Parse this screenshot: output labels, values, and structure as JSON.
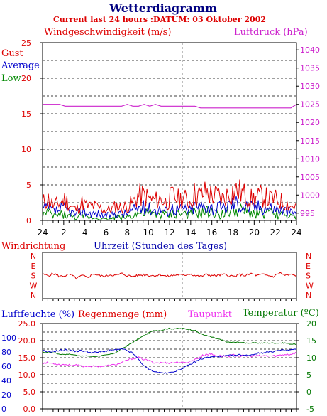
{
  "header": {
    "title": "Wetterdiagramm",
    "subtitle": "Current last 24 hours :DATUM: 03 Oktober 2002"
  },
  "colors": {
    "gust": "#dd0000",
    "average": "#0000cc",
    "low": "#008800",
    "pressure": "#cc22cc",
    "title": "#000080",
    "dew": "#ee33ee",
    "temp": "#007700",
    "humidity": "#0000cc",
    "rain": "#dd0000"
  },
  "chart_data": [
    {
      "type": "line",
      "name": "wind-pressure",
      "left_title": "Windgeschwindigkeit (m/s)",
      "right_title": "Luftdruck (hPa)",
      "legend": [
        "Gust",
        "Average",
        "Low"
      ],
      "x_ticks": [
        "24",
        "2",
        "4",
        "6",
        "8",
        "10",
        "12",
        "14",
        "16",
        "18",
        "20",
        "22",
        "24"
      ],
      "y_left_ticks": [
        "0",
        "5",
        "10",
        "15",
        "20",
        "25"
      ],
      "y_left_range": [
        0,
        25
      ],
      "y_right_ticks": [
        "995",
        "1000",
        "1005",
        "1010",
        "1015",
        "1020",
        "1025",
        "1030",
        "1035",
        "1040"
      ],
      "y_right_range": [
        993,
        1042
      ],
      "series": [
        {
          "name": "Gust",
          "values": [
            2.5,
            3,
            2,
            2.5,
            3,
            2,
            1.5,
            2.5,
            2,
            2,
            1.8,
            1.5,
            1.5,
            2,
            1.8,
            2,
            2.5,
            3.5,
            3.5,
            3,
            2.8,
            3,
            2.5,
            3.5,
            3,
            3.2,
            2.5,
            3.8,
            3.5,
            4,
            3.5,
            3.5,
            3,
            3.8,
            4.2,
            4,
            3.5,
            3,
            3.2,
            3.5,
            3,
            3,
            2.8,
            2.5,
            2,
            2
          ]
        },
        {
          "name": "Average",
          "values": [
            1.5,
            1.8,
            1.2,
            1.5,
            1.6,
            1.2,
            0.8,
            1.4,
            1,
            1,
            0.9,
            0.7,
            0.7,
            1,
            0.9,
            1,
            1.4,
            1.8,
            1.8,
            1.6,
            1.5,
            1.6,
            1.3,
            1.8,
            1.6,
            1.7,
            1.3,
            2,
            1.9,
            2.2,
            1.8,
            1.8,
            1.6,
            2.2,
            2.5,
            2.3,
            2,
            1.8,
            1.9,
            2,
            1.8,
            1.7,
            1.5,
            1.4,
            1.1,
            1.1
          ]
        },
        {
          "name": "Low",
          "values": [
            0.8,
            1,
            0.6,
            0.8,
            0.8,
            0.6,
            0.3,
            0.7,
            0.4,
            0.4,
            0.3,
            0.2,
            0.2,
            0.5,
            0.4,
            0.5,
            0.8,
            1,
            1,
            0.9,
            0.8,
            0.9,
            0.7,
            1,
            0.9,
            1,
            0.7,
            1.1,
            1,
            1.2,
            1,
            1,
            0.9,
            1.2,
            1.4,
            1.3,
            1.1,
            1,
            1,
            1.1,
            1,
            0.9,
            0.8,
            0.7,
            0.5,
            0.5
          ]
        },
        {
          "name": "Luftdruck",
          "values": [
            1025,
            1025,
            1025,
            1025,
            1024.5,
            1024.5,
            1024.5,
            1024.5,
            1024.5,
            1024.5,
            1024.5,
            1024.5,
            1024.5,
            1024.5,
            1024.5,
            1025,
            1024.5,
            1024.5,
            1025,
            1024.5,
            1025,
            1024.5,
            1024.5,
            1024.5,
            1024.5,
            1024.5,
            1024.5,
            1024.5,
            1024,
            1024,
            1024,
            1024,
            1024,
            1024,
            1024,
            1024,
            1024,
            1024,
            1024,
            1024,
            1024,
            1024,
            1024,
            1024,
            1024,
            1025
          ]
        }
      ]
    },
    {
      "type": "line",
      "name": "wind-direction",
      "left_title": "Windrichtung",
      "center_title": "Uhrzeit (Stunden des Tages)",
      "y_labels": [
        "N",
        "W",
        "S",
        "E",
        "N"
      ],
      "series": [
        {
          "name": "Windrichtung",
          "values": [
            2.1,
            2,
            2.2,
            1.9,
            2,
            2.1,
            1.7,
            2,
            1.8,
            2.2,
            2,
            1.9,
            2.1,
            2,
            2.2,
            2,
            1.9,
            2,
            2.1,
            2,
            2,
            2.1,
            1.9,
            2,
            2.1,
            2,
            2.2,
            2,
            1.9,
            2.1,
            2,
            2,
            2.1,
            2,
            1.9,
            2.1,
            2,
            2.2,
            2,
            2.1,
            2,
            1.9,
            2.3,
            2,
            2.1,
            2
          ]
        }
      ]
    },
    {
      "type": "line",
      "name": "humidity-rain-dew-temp",
      "left_title": "Luftfeuchte (%)",
      "rain_title": "Regenmenge (mm)",
      "dew_title": "Taupunkt",
      "right_title": "Temperatur (ºC)",
      "y_left_ticks": [
        "0",
        "20",
        "40",
        "60",
        "80",
        "100"
      ],
      "y_rain_ticks": [
        "0.0",
        "5.0",
        "10.0",
        "15.0",
        "20.0",
        "25.0"
      ],
      "y_right_ticks": [
        "-5",
        "0",
        "5",
        "10",
        "15",
        "20"
      ],
      "y_right_range": [
        -5,
        20
      ],
      "series": [
        {
          "name": "Luftfeuchte",
          "values": [
            82,
            80,
            81,
            82,
            83,
            82,
            81,
            82,
            80,
            79,
            80,
            81,
            82,
            83,
            84,
            82,
            78,
            70,
            60,
            55,
            52,
            51,
            50,
            52,
            54,
            58,
            62,
            66,
            70,
            72,
            73,
            74,
            74,
            75,
            75,
            76,
            75,
            76,
            78,
            79,
            80,
            81,
            82,
            82,
            83,
            84
          ]
        },
        {
          "name": "Temperatur",
          "values": [
            11.5,
            11.5,
            11.5,
            11,
            11,
            11,
            10.7,
            10.5,
            10.5,
            10.3,
            10.5,
            10.7,
            11,
            11.5,
            12.5,
            13.5,
            14.5,
            15.5,
            16.5,
            17.5,
            18,
            18,
            18.5,
            18.5,
            18.5,
            18.5,
            18.3,
            18,
            17,
            16.5,
            16,
            15.5,
            15,
            14.5,
            14.5,
            14.5,
            14.3,
            14.3,
            14.3,
            14.3,
            14.3,
            14.3,
            14.3,
            14.3,
            14,
            14
          ]
        },
        {
          "name": "Taupunkt",
          "values": [
            8.5,
            8.5,
            8.3,
            8,
            8,
            7.8,
            7.8,
            7.5,
            7.5,
            7.5,
            7.5,
            7.5,
            7.8,
            8,
            8.5,
            9.3,
            9.8,
            10,
            9.5,
            9,
            8.5,
            8.5,
            8.5,
            8.5,
            8.7,
            8.5,
            8.8,
            9.5,
            10.3,
            11,
            11,
            10.5,
            10.5,
            10.5,
            10.7,
            10.5,
            10.5,
            10.5,
            10.5,
            10.5,
            10.5,
            10.5,
            10.7,
            11,
            11,
            11.5
          ]
        }
      ]
    }
  ]
}
